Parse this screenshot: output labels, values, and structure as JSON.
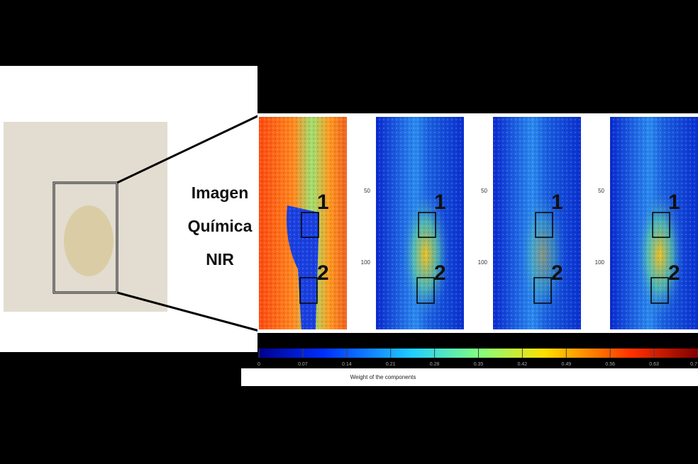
{
  "figure": {
    "title_lines": [
      "Imagen",
      "Química",
      "NIR"
    ],
    "panels": [
      {
        "regions": [
          "1",
          "2"
        ]
      },
      {
        "y_ticks": [
          "50",
          "100"
        ],
        "regions": [
          "1",
          "2"
        ]
      },
      {
        "y_ticks": [
          "50",
          "100"
        ],
        "regions": [
          "1",
          "2"
        ]
      },
      {
        "y_ticks": [
          "50",
          "100"
        ],
        "regions": [
          "1",
          "2"
        ]
      }
    ],
    "colorbar": {
      "ticks": [
        0,
        0.07,
        0.14,
        0.21,
        0.28,
        0.35,
        0.42,
        0.49,
        0.56,
        0.63,
        0.7
      ],
      "label": "Weight of the components"
    }
  }
}
